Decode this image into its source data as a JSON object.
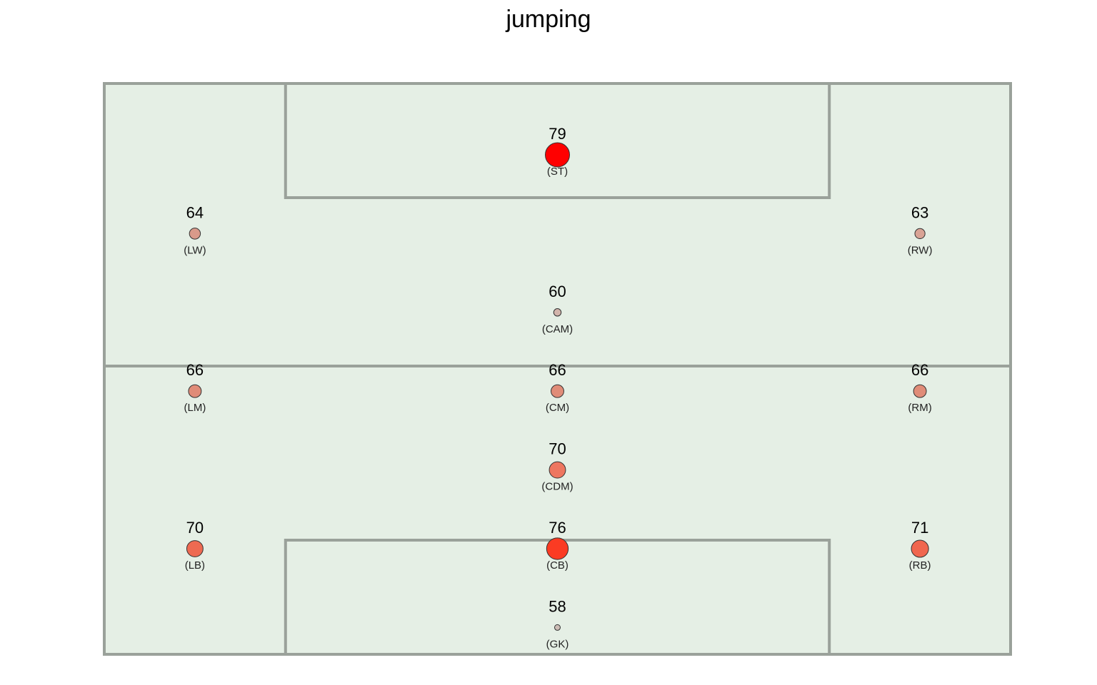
{
  "chart_data": {
    "type": "scatter",
    "title": "jumping",
    "xlabel": "",
    "ylabel": "",
    "xlim": [
      0,
      100
    ],
    "ylim": [
      0,
      100
    ],
    "grid": false,
    "legend": "none",
    "points": [
      {
        "position": "(ST)",
        "value": "79",
        "x": 50,
        "y": 87.5,
        "color": "#ff0000"
      },
      {
        "position": "(LW)",
        "value": "64",
        "x": 10,
        "y": 73.7,
        "color": "#d99a8a"
      },
      {
        "position": "(RW)",
        "value": "63",
        "x": 90,
        "y": 73.7,
        "color": "#d9a395"
      },
      {
        "position": "(CAM)",
        "value": "60",
        "x": 50,
        "y": 59.9,
        "color": "#d2b4ab"
      },
      {
        "position": "(LM)",
        "value": "66",
        "x": 10,
        "y": 46.1,
        "color": "#e08c78"
      },
      {
        "position": "(CM)",
        "value": "66",
        "x": 50,
        "y": 46.1,
        "color": "#e08c78"
      },
      {
        "position": "(RM)",
        "value": "66",
        "x": 90,
        "y": 46.1,
        "color": "#e08c78"
      },
      {
        "position": "(CDM)",
        "value": "70",
        "x": 50,
        "y": 32.3,
        "color": "#ee7660"
      },
      {
        "position": "(LB)",
        "value": "70",
        "x": 10,
        "y": 18.5,
        "color": "#ee6a52"
      },
      {
        "position": "(CB)",
        "value": "76",
        "x": 50,
        "y": 18.5,
        "color": "#fb3b23"
      },
      {
        "position": "(RB)",
        "value": "71",
        "x": 90,
        "y": 18.5,
        "color": "#f0664e"
      },
      {
        "position": "(GK)",
        "value": "58",
        "x": 50,
        "y": 4.7,
        "color": "#cdbdb6"
      }
    ],
    "pitch_fill": "#e5efe5",
    "pitch_line": "#9aa19a"
  }
}
